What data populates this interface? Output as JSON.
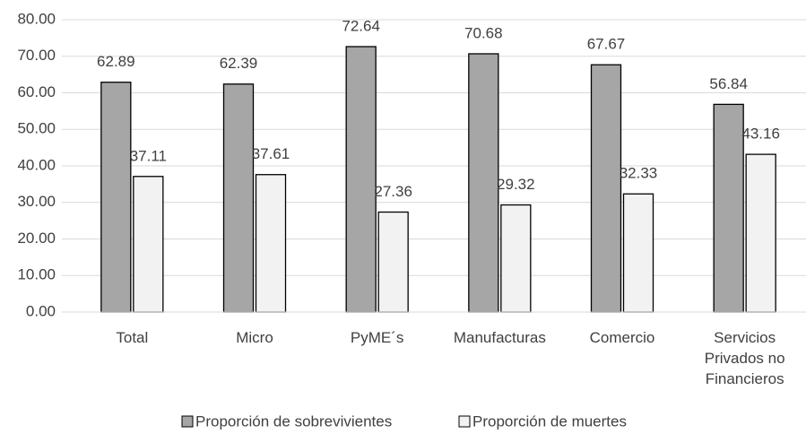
{
  "chart_data": {
    "type": "bar",
    "categories": [
      "Total",
      "Micro",
      "PyME´s",
      "Manufacturas",
      "Comercio",
      "Servicios Privados no Financieros"
    ],
    "series": [
      {
        "name": "Proporción de sobrevivientes",
        "color": "#a6a6a6",
        "values": [
          62.89,
          62.39,
          72.64,
          70.68,
          67.67,
          56.84
        ]
      },
      {
        "name": "Proporción de muertes",
        "color": "#f2f2f2",
        "values": [
          37.11,
          37.61,
          27.36,
          29.32,
          32.33,
          43.16
        ]
      }
    ],
    "ylim": [
      0,
      80
    ],
    "yticks": [
      {
        "value": 0,
        "label": "0.00"
      },
      {
        "value": 10,
        "label": "10.00"
      },
      {
        "value": 20,
        "label": "20.00"
      },
      {
        "value": 30,
        "label": "30.00"
      },
      {
        "value": 40,
        "label": "40.00"
      },
      {
        "value": 50,
        "label": "50.00"
      },
      {
        "value": 60,
        "label": "60.00"
      },
      {
        "value": 70,
        "label": "70.00"
      },
      {
        "value": 80,
        "label": "80.00"
      }
    ],
    "grid": true,
    "legend": "bottom"
  }
}
